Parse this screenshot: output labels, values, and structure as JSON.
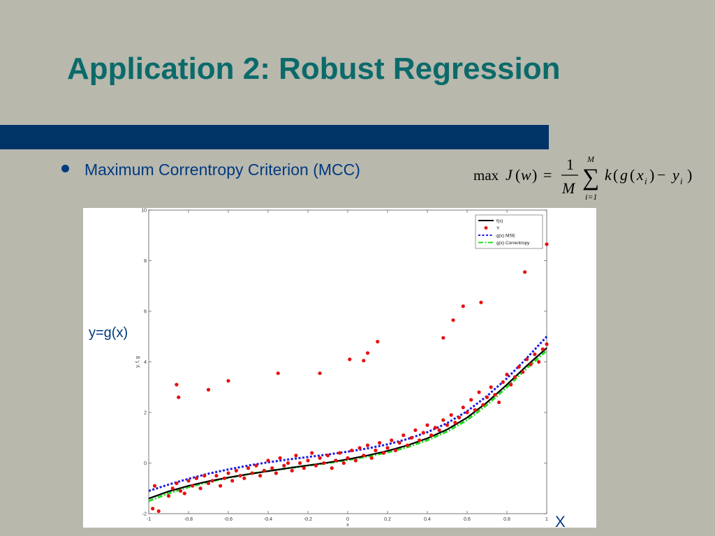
{
  "slide": {
    "title": "Application 2: Robust Regression",
    "bullet": "Maximum Correntropy Criterion (MCC)",
    "formula": {
      "max": "max",
      "J": "J",
      "lpar": "(",
      "w": "w",
      "rpar": ")",
      "eq": "=",
      "one": "1",
      "M": "M",
      "sum_top": "M",
      "sum_bottom": "i=1",
      "k": "k",
      "g": "g",
      "x": "x",
      "i": "i",
      "minus": "−",
      "y": "y"
    },
    "y_annotation": "y=g(x)",
    "x_annotation": "X",
    "colors": {
      "title": "#0b6a6a",
      "bar": "#003366",
      "text": "#003a80",
      "background": "#b8b8ad"
    }
  },
  "chart_data": {
    "type": "scatter",
    "xlabel": "x",
    "ylabel": "y, f, g",
    "xlim": [
      -1,
      1
    ],
    "ylim": [
      -2,
      10
    ],
    "xticks": [
      -1,
      -0.8,
      -0.6,
      -0.4,
      -0.2,
      0,
      0.2,
      0.4,
      0.6,
      0.8,
      1
    ],
    "xtick_labels": [
      "-1",
      "-0.8",
      "-0.6",
      "-0.4",
      "-0.2",
      "0",
      "0.2",
      "0.4",
      "0.6",
      "0.8",
      "1"
    ],
    "yticks": [
      -2,
      0,
      2,
      4,
      6,
      8,
      10
    ],
    "ytick_labels": [
      "-2",
      "0",
      "2",
      "4",
      "6",
      "8",
      "10"
    ],
    "grid": false,
    "legend_position": "top-right",
    "series": [
      {
        "name": "f(x)",
        "kind": "line",
        "color": "#000000",
        "style": "solid",
        "x": [
          -1,
          -0.9,
          -0.8,
          -0.7,
          -0.6,
          -0.5,
          -0.4,
          -0.3,
          -0.2,
          -0.1,
          0,
          0.1,
          0.2,
          0.3,
          0.4,
          0.5,
          0.6,
          0.7,
          0.8,
          0.9,
          1
        ],
        "y": [
          -1.4,
          -1.12,
          -0.9,
          -0.72,
          -0.57,
          -0.44,
          -0.32,
          -0.2,
          -0.09,
          0.02,
          0.15,
          0.3,
          0.48,
          0.7,
          0.98,
          1.33,
          1.8,
          2.4,
          3.1,
          3.85,
          4.55
        ]
      },
      {
        "name": "Y",
        "kind": "scatter",
        "color": "#e81010",
        "x": [
          -0.98,
          -0.97,
          -0.95,
          -0.9,
          -0.88,
          -0.86,
          -0.84,
          -0.82,
          -0.8,
          -0.78,
          -0.76,
          -0.74,
          -0.72,
          -0.7,
          -0.68,
          -0.66,
          -0.64,
          -0.62,
          -0.6,
          -0.58,
          -0.56,
          -0.54,
          -0.52,
          -0.5,
          -0.48,
          -0.46,
          -0.44,
          -0.42,
          -0.4,
          -0.38,
          -0.36,
          -0.34,
          -0.32,
          -0.3,
          -0.28,
          -0.26,
          -0.24,
          -0.22,
          -0.2,
          -0.18,
          -0.16,
          -0.14,
          -0.12,
          -0.1,
          -0.08,
          -0.06,
          -0.04,
          -0.02,
          0,
          0.02,
          0.04,
          0.06,
          0.08,
          0.1,
          0.12,
          0.14,
          0.16,
          0.18,
          0.2,
          0.22,
          0.24,
          0.26,
          0.28,
          0.3,
          0.32,
          0.34,
          0.36,
          0.38,
          0.4,
          0.42,
          0.44,
          0.46,
          0.48,
          0.5,
          0.52,
          0.54,
          0.56,
          0.58,
          0.6,
          0.62,
          0.64,
          0.66,
          0.68,
          0.7,
          0.72,
          0.74,
          0.76,
          0.78,
          0.8,
          0.82,
          0.84,
          0.86,
          0.88,
          0.9,
          0.92,
          0.94,
          0.96,
          0.98,
          1,
          -0.86,
          -0.85,
          -0.7,
          -0.6,
          -0.35,
          -0.14,
          0.01,
          0.08,
          0.1,
          0.15,
          0.48,
          0.53,
          0.58,
          0.67,
          0.89,
          1
        ],
        "y": [
          -1.8,
          -0.9,
          -1.9,
          -1.3,
          -1.0,
          -0.8,
          -1.1,
          -1.2,
          -0.7,
          -0.9,
          -0.6,
          -1.0,
          -0.5,
          -0.8,
          -0.7,
          -0.5,
          -0.9,
          -0.6,
          -0.4,
          -0.7,
          -0.3,
          -0.5,
          -0.6,
          -0.2,
          -0.4,
          -0.1,
          -0.5,
          -0.3,
          0.1,
          -0.2,
          -0.4,
          0.2,
          -0.1,
          0.0,
          -0.3,
          0.3,
          0.0,
          -0.2,
          0.1,
          0.4,
          -0.1,
          0.2,
          0.0,
          0.3,
          -0.2,
          0.1,
          0.4,
          0.0,
          0.2,
          0.5,
          0.1,
          0.6,
          0.3,
          0.7,
          0.2,
          0.5,
          0.8,
          0.4,
          0.6,
          0.9,
          0.5,
          0.8,
          1.1,
          0.7,
          1.0,
          1.3,
          0.9,
          1.2,
          1.5,
          1.1,
          1.4,
          1.3,
          1.7,
          1.5,
          1.9,
          1.6,
          1.8,
          2.2,
          2.0,
          2.5,
          2.1,
          2.8,
          2.3,
          2.6,
          3.0,
          2.7,
          2.4,
          3.2,
          3.5,
          3.1,
          3.4,
          3.8,
          3.6,
          4.1,
          3.9,
          4.3,
          4.0,
          4.5,
          4.7,
          3.1,
          2.6,
          2.9,
          3.25,
          3.55,
          3.55,
          4.1,
          4.05,
          4.35,
          4.8,
          4.95,
          5.65,
          6.2,
          6.35,
          7.55,
          8.65
        ]
      },
      {
        "name": "g(x) MSE",
        "kind": "line",
        "color": "#1a1adc",
        "style": "dotted",
        "x": [
          -1,
          -0.9,
          -0.8,
          -0.7,
          -0.6,
          -0.5,
          -0.4,
          -0.3,
          -0.2,
          -0.1,
          0,
          0.1,
          0.2,
          0.3,
          0.4,
          0.5,
          0.6,
          0.7,
          0.8,
          0.9,
          1
        ],
        "y": [
          -1.1,
          -0.85,
          -0.62,
          -0.42,
          -0.25,
          -0.1,
          0.03,
          0.14,
          0.24,
          0.34,
          0.45,
          0.58,
          0.74,
          0.95,
          1.22,
          1.58,
          2.05,
          2.65,
          3.35,
          4.15,
          5.0
        ]
      },
      {
        "name": "g(x) Correntropy",
        "kind": "line",
        "color": "#22dd22",
        "style": "dash-dot",
        "x": [
          -1,
          -0.9,
          -0.8,
          -0.7,
          -0.6,
          -0.5,
          -0.4,
          -0.3,
          -0.2,
          -0.1,
          0,
          0.1,
          0.2,
          0.3,
          0.4,
          0.5,
          0.6,
          0.7,
          0.8,
          0.9,
          1
        ],
        "y": [
          -1.5,
          -1.2,
          -0.95,
          -0.75,
          -0.58,
          -0.44,
          -0.31,
          -0.2,
          -0.1,
          0.0,
          0.12,
          0.26,
          0.42,
          0.63,
          0.9,
          1.25,
          1.7,
          2.3,
          3.0,
          3.75,
          4.45
        ]
      }
    ]
  }
}
